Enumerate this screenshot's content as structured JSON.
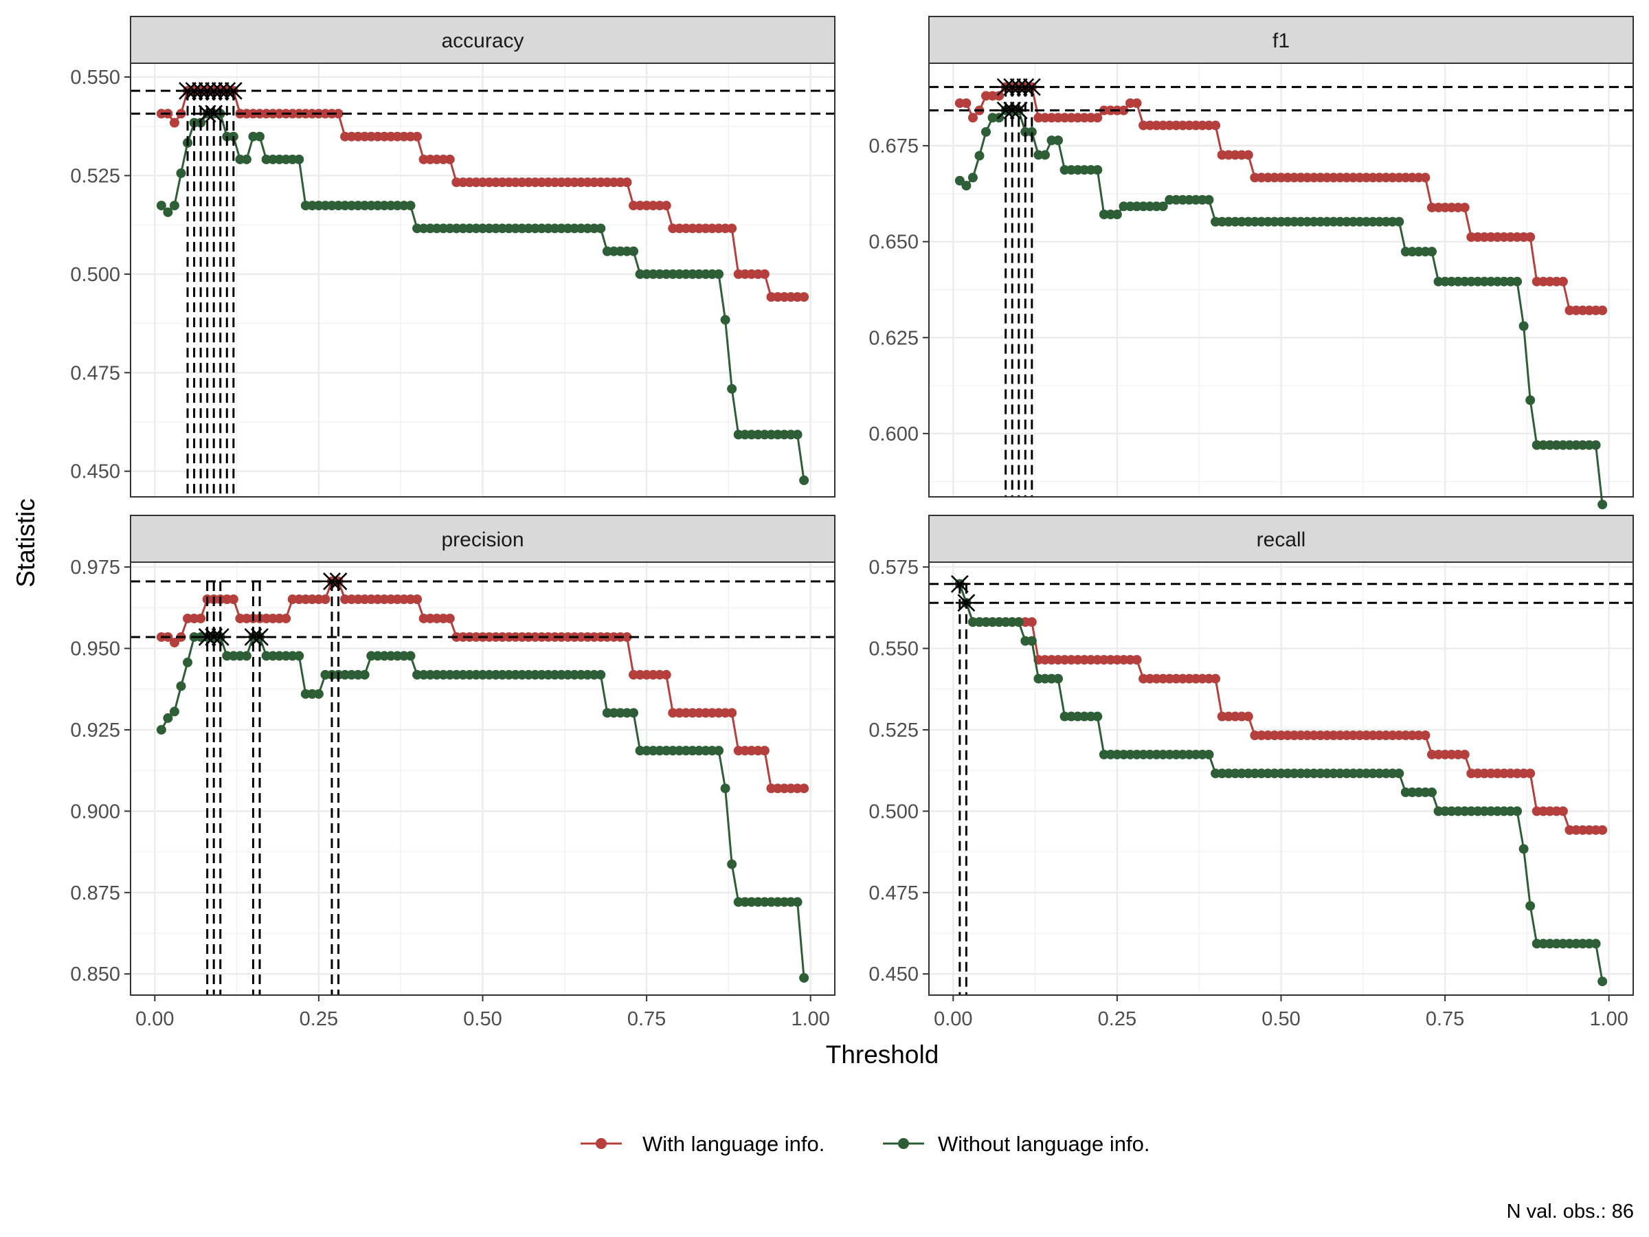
{
  "chart_data": {
    "type": "line",
    "layout": "facet_wrap_2x2",
    "xlabel": "Threshold",
    "ylabel": "Statistic",
    "caption": "N val. obs.: 86",
    "grid": true,
    "legend": {
      "position": "bottom",
      "entries": [
        {
          "name": "With language info.",
          "color": "#b53f3c"
        },
        {
          "name": "Without language info.",
          "color": "#2d5e35"
        }
      ]
    },
    "x_ticks": [
      "0.00",
      "0.25",
      "0.50",
      "0.75",
      "1.00"
    ],
    "panels": [
      {
        "title": "accuracy",
        "xlim": [
          -0.037,
          1.037
        ],
        "ylim": [
          0.4435,
          0.5535
        ],
        "y_ticks": [
          0.45,
          0.475,
          0.5,
          0.525,
          0.55
        ],
        "y_tick_labels": [
          "0.450",
          "0.475",
          "0.500",
          "0.525",
          "0.550"
        ],
        "hlines": [
          0.5465,
          0.5407
        ],
        "vlines": [
          0.05,
          0.06,
          0.07,
          0.08,
          0.09,
          0.1,
          0.11,
          0.12
        ],
        "optima": [
          {
            "x": [
              0.05,
              0.06,
              0.07,
              0.08,
              0.09,
              0.1,
              0.11,
              0.12
            ],
            "y": 0.5465
          },
          {
            "x": [
              0.08,
              0.09
            ],
            "y": 0.5407
          }
        ],
        "series": [
          {
            "name": "With language info.",
            "steps": [
              [
                0.01,
                0.5407
              ],
              [
                0.03,
                0.5384
              ],
              [
                0.04,
                0.5407
              ],
              [
                0.05,
                0.5465
              ],
              [
                0.13,
                0.5407
              ],
              [
                0.29,
                0.5349
              ],
              [
                0.41,
                0.5291
              ],
              [
                0.46,
                0.5233
              ],
              [
                0.73,
                0.5174
              ],
              [
                0.79,
                0.5116
              ],
              [
                0.89,
                0.5
              ],
              [
                0.94,
                0.4942
              ],
              [
                0.99,
                0.4942
              ]
            ]
          },
          {
            "name": "Without language info.",
            "steps": [
              [
                0.01,
                0.5174
              ],
              [
                0.02,
                0.5157
              ],
              [
                0.03,
                0.5174
              ],
              [
                0.04,
                0.5256
              ],
              [
                0.05,
                0.5333
              ],
              [
                0.06,
                0.5384
              ],
              [
                0.07,
                0.5384
              ],
              [
                0.08,
                0.5407
              ],
              [
                0.1,
                0.5407
              ],
              [
                0.11,
                0.5349
              ],
              [
                0.13,
                0.5291
              ],
              [
                0.15,
                0.5349
              ],
              [
                0.17,
                0.5291
              ],
              [
                0.23,
                0.5174
              ],
              [
                0.4,
                0.5116
              ],
              [
                0.69,
                0.5058
              ],
              [
                0.74,
                0.5
              ],
              [
                0.87,
                0.4884
              ],
              [
                0.88,
                0.4709
              ],
              [
                0.89,
                0.4593
              ],
              [
                0.99,
                0.4477
              ]
            ]
          }
        ]
      },
      {
        "title": "f1",
        "xlim": [
          -0.037,
          1.037
        ],
        "ylim": [
          0.5835,
          0.6965
        ],
        "y_ticks": [
          0.6,
          0.625,
          0.65,
          0.675
        ],
        "y_tick_labels": [
          "0.600",
          "0.625",
          "0.650",
          "0.675"
        ],
        "hlines": [
          0.6903,
          0.6842
        ],
        "vlines": [
          0.08,
          0.09,
          0.1,
          0.11,
          0.12
        ],
        "optima": [
          {
            "x": [
              0.08,
              0.09,
              0.1,
              0.11,
              0.12
            ],
            "y": 0.6903
          },
          {
            "x": [
              0.08,
              0.09,
              0.1
            ],
            "y": 0.6842
          }
        ],
        "series": [
          {
            "name": "With language info.",
            "steps": [
              [
                0.01,
                0.6861
              ],
              [
                0.03,
                0.6823
              ],
              [
                0.04,
                0.6842
              ],
              [
                0.05,
                0.688
              ],
              [
                0.08,
                0.6903
              ],
              [
                0.13,
                0.6823
              ],
              [
                0.23,
                0.6842
              ],
              [
                0.27,
                0.6861
              ],
              [
                0.29,
                0.6803
              ],
              [
                0.41,
                0.6726
              ],
              [
                0.46,
                0.6667
              ],
              [
                0.73,
                0.6589
              ],
              [
                0.79,
                0.6512
              ],
              [
                0.89,
                0.6396
              ],
              [
                0.94,
                0.6321
              ],
              [
                0.99,
                0.6321
              ]
            ]
          },
          {
            "name": "Without language info.",
            "steps": [
              [
                0.01,
                0.6659
              ],
              [
                0.02,
                0.6646
              ],
              [
                0.03,
                0.6667
              ],
              [
                0.04,
                0.6724
              ],
              [
                0.05,
                0.6786
              ],
              [
                0.06,
                0.6823
              ],
              [
                0.08,
                0.6842
              ],
              [
                0.11,
                0.6786
              ],
              [
                0.13,
                0.6726
              ],
              [
                0.15,
                0.6764
              ],
              [
                0.17,
                0.6687
              ],
              [
                0.23,
                0.6571
              ],
              [
                0.26,
                0.6592
              ],
              [
                0.33,
                0.6609
              ],
              [
                0.4,
                0.6552
              ],
              [
                0.69,
                0.6474
              ],
              [
                0.74,
                0.6396
              ],
              [
                0.87,
                0.628
              ],
              [
                0.88,
                0.6087
              ],
              [
                0.89,
                0.597
              ],
              [
                0.99,
                0.5815
              ]
            ]
          }
        ]
      },
      {
        "title": "precision",
        "xlim": [
          -0.037,
          1.037
        ],
        "ylim": [
          0.8435,
          0.9765
        ],
        "y_ticks": [
          0.85,
          0.875,
          0.9,
          0.925,
          0.95,
          0.975
        ],
        "y_tick_labels": [
          "0.850",
          "0.875",
          "0.900",
          "0.925",
          "0.950",
          "0.975"
        ],
        "hlines": [
          0.9706,
          0.9535
        ],
        "vlines": [
          0.08,
          0.09,
          0.1,
          0.15,
          0.16,
          0.27,
          0.28
        ],
        "optima": [
          {
            "x": [
              0.27,
              0.28
            ],
            "y": 0.9706
          },
          {
            "x": [
              0.08,
              0.09,
              0.1,
              0.15,
              0.16
            ],
            "y": 0.9535
          }
        ],
        "series": [
          {
            "name": "With language info.",
            "steps": [
              [
                0.01,
                0.9535
              ],
              [
                0.03,
                0.9518
              ],
              [
                0.04,
                0.9535
              ],
              [
                0.05,
                0.9592
              ],
              [
                0.08,
                0.9651
              ],
              [
                0.13,
                0.9592
              ],
              [
                0.21,
                0.9651
              ],
              [
                0.27,
                0.9706
              ],
              [
                0.29,
                0.9651
              ],
              [
                0.41,
                0.9592
              ],
              [
                0.46,
                0.9535
              ],
              [
                0.73,
                0.9419
              ],
              [
                0.79,
                0.9302
              ],
              [
                0.89,
                0.9186
              ],
              [
                0.94,
                0.907
              ],
              [
                0.99,
                0.907
              ]
            ]
          },
          {
            "name": "Without language info.",
            "steps": [
              [
                0.01,
                0.925
              ],
              [
                0.02,
                0.9286
              ],
              [
                0.03,
                0.9306
              ],
              [
                0.04,
                0.9384
              ],
              [
                0.05,
                0.9457
              ],
              [
                0.06,
                0.9535
              ],
              [
                0.11,
                0.9477
              ],
              [
                0.15,
                0.9535
              ],
              [
                0.17,
                0.9477
              ],
              [
                0.23,
                0.936
              ],
              [
                0.26,
                0.9419
              ],
              [
                0.33,
                0.9477
              ],
              [
                0.4,
                0.9419
              ],
              [
                0.69,
                0.9302
              ],
              [
                0.74,
                0.9186
              ],
              [
                0.87,
                0.907
              ],
              [
                0.88,
                0.8837
              ],
              [
                0.89,
                0.8721
              ],
              [
                0.99,
                0.8488
              ]
            ]
          }
        ]
      },
      {
        "title": "recall",
        "xlim": [
          -0.037,
          1.037
        ],
        "ylim": [
          0.4435,
          0.5765
        ],
        "y_ticks": [
          0.45,
          0.475,
          0.5,
          0.525,
          0.55,
          0.575
        ],
        "y_tick_labels": [
          "0.450",
          "0.475",
          "0.500",
          "0.525",
          "0.550",
          "0.575"
        ],
        "hlines": [
          0.5698,
          0.564
        ],
        "vlines": [
          0.01,
          0.02
        ],
        "optima": [
          {
            "x": [
              0.01
            ],
            "y": 0.5698
          },
          {
            "x": [
              0.02
            ],
            "y": 0.564
          }
        ],
        "series": [
          {
            "name": "With language info.",
            "steps": [
              [
                0.01,
                0.5698
              ],
              [
                0.02,
                0.564
              ],
              [
                0.03,
                0.5581
              ],
              [
                0.13,
                0.5465
              ],
              [
                0.29,
                0.5407
              ],
              [
                0.41,
                0.5291
              ],
              [
                0.46,
                0.5233
              ],
              [
                0.73,
                0.5174
              ],
              [
                0.79,
                0.5116
              ],
              [
                0.89,
                0.5
              ],
              [
                0.94,
                0.4942
              ],
              [
                0.99,
                0.4942
              ]
            ]
          },
          {
            "name": "Without language info.",
            "steps": [
              [
                0.01,
                0.5698
              ],
              [
                0.02,
                0.564
              ],
              [
                0.03,
                0.5581
              ],
              [
                0.11,
                0.5523
              ],
              [
                0.13,
                0.5407
              ],
              [
                0.17,
                0.5291
              ],
              [
                0.23,
                0.5174
              ],
              [
                0.4,
                0.5116
              ],
              [
                0.69,
                0.5058
              ],
              [
                0.74,
                0.5
              ],
              [
                0.87,
                0.4884
              ],
              [
                0.88,
                0.4709
              ],
              [
                0.89,
                0.4593
              ],
              [
                0.99,
                0.4477
              ]
            ]
          }
        ]
      }
    ]
  }
}
